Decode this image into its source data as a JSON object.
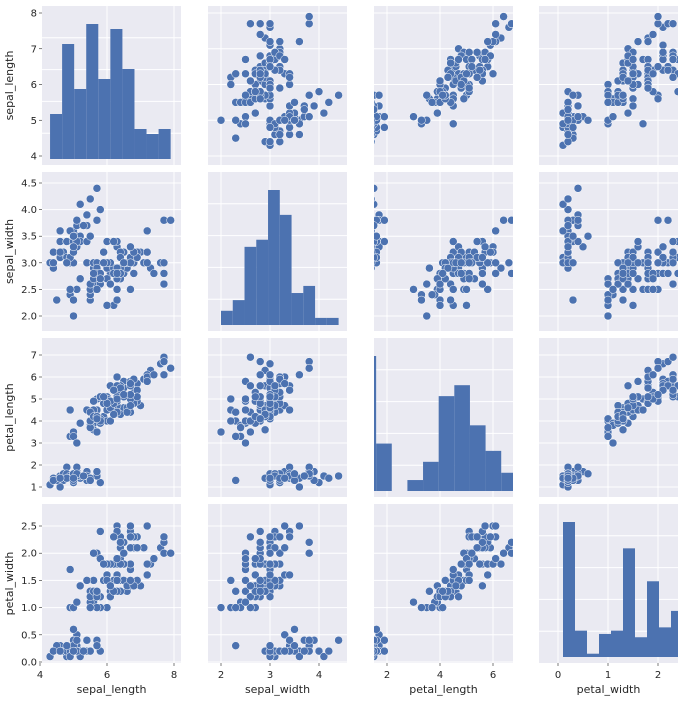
{
  "chart_data": {
    "type": "scatter",
    "variables": [
      "sepal_length",
      "sepal_width",
      "petal_length",
      "petal_width"
    ],
    "axis_labels": {
      "x": [
        "sepal_length",
        "sepal_width",
        "petal_length",
        "petal_width"
      ],
      "y": [
        "sepal_length",
        "sepal_width",
        "petal_length",
        "petal_width"
      ]
    },
    "x_ticks": [
      [
        "4",
        "6",
        "8"
      ],
      [
        "2",
        "3",
        "4"
      ],
      [
        "2",
        "4",
        "6"
      ],
      [
        "0",
        "1",
        "2"
      ]
    ],
    "y_ticks": [
      [
        "4",
        "5",
        "6",
        "7",
        "8"
      ],
      [
        "2.0",
        "2.5",
        "3.0",
        "3.5",
        "4.0",
        "4.5"
      ],
      [
        "1",
        "2",
        "3",
        "4",
        "5",
        "6",
        "7"
      ],
      [
        "0.0",
        "0.5",
        "1.0",
        "1.5",
        "2.0",
        "2.5"
      ]
    ],
    "colors": {
      "point": "#4c72b0",
      "bar": "#4c72b0",
      "panel_bg": "#eaeaf2",
      "grid": "#ffffff"
    },
    "grid": true,
    "diagonal": "hist",
    "hist": [
      {
        "variable": "sepal_length",
        "edges": [
          4.3,
          4.66,
          5.02,
          5.38,
          5.74,
          6.1,
          6.46,
          6.82,
          7.18,
          7.54,
          7.9
        ],
        "counts": [
          9,
          23,
          14,
          27,
          16,
          26,
          18,
          6,
          5,
          6
        ]
      },
      {
        "variable": "sepal_width",
        "edges": [
          2.0,
          2.24,
          2.48,
          2.72,
          2.96,
          3.2,
          3.44,
          3.68,
          3.92,
          4.16,
          4.4
        ],
        "counts": [
          4,
          7,
          22,
          24,
          38,
          31,
          9,
          11,
          2,
          2
        ]
      },
      {
        "variable": "petal_length",
        "edges": [
          1.0,
          1.59,
          2.18,
          2.77,
          3.36,
          3.95,
          4.54,
          5.13,
          5.72,
          6.31,
          6.9
        ],
        "counts": [
          37,
          13,
          0,
          3,
          8,
          26,
          29,
          18,
          11,
          5
        ]
      },
      {
        "variable": "petal_width",
        "edges": [
          0.1,
          0.34,
          0.58,
          0.82,
          1.06,
          1.3,
          1.54,
          1.78,
          2.02,
          2.26,
          2.5
        ],
        "counts": [
          41,
          8,
          1,
          7,
          8,
          33,
          6,
          23,
          9,
          14
        ]
      }
    ],
    "points": [
      [
        5.1,
        3.5,
        1.4,
        0.2
      ],
      [
        4.9,
        3.0,
        1.4,
        0.2
      ],
      [
        4.7,
        3.2,
        1.3,
        0.2
      ],
      [
        4.6,
        3.1,
        1.5,
        0.2
      ],
      [
        5.0,
        3.6,
        1.4,
        0.2
      ],
      [
        5.4,
        3.9,
        1.7,
        0.4
      ],
      [
        4.6,
        3.4,
        1.4,
        0.3
      ],
      [
        5.0,
        3.4,
        1.5,
        0.2
      ],
      [
        4.4,
        2.9,
        1.4,
        0.2
      ],
      [
        4.9,
        3.1,
        1.5,
        0.1
      ],
      [
        5.4,
        3.7,
        1.5,
        0.2
      ],
      [
        4.8,
        3.4,
        1.6,
        0.2
      ],
      [
        4.8,
        3.0,
        1.4,
        0.1
      ],
      [
        4.3,
        3.0,
        1.1,
        0.1
      ],
      [
        5.8,
        4.0,
        1.2,
        0.2
      ],
      [
        5.7,
        4.4,
        1.5,
        0.4
      ],
      [
        5.4,
        3.9,
        1.3,
        0.4
      ],
      [
        5.1,
        3.5,
        1.4,
        0.3
      ],
      [
        5.7,
        3.8,
        1.7,
        0.3
      ],
      [
        5.1,
        3.8,
        1.5,
        0.3
      ],
      [
        5.4,
        3.4,
        1.7,
        0.2
      ],
      [
        5.1,
        3.7,
        1.5,
        0.4
      ],
      [
        4.6,
        3.6,
        1.0,
        0.2
      ],
      [
        5.1,
        3.3,
        1.7,
        0.5
      ],
      [
        4.8,
        3.4,
        1.9,
        0.2
      ],
      [
        5.0,
        3.0,
        1.6,
        0.2
      ],
      [
        5.0,
        3.4,
        1.6,
        0.4
      ],
      [
        5.2,
        3.5,
        1.5,
        0.2
      ],
      [
        5.2,
        3.4,
        1.4,
        0.2
      ],
      [
        4.7,
        3.2,
        1.6,
        0.2
      ],
      [
        4.8,
        3.1,
        1.6,
        0.2
      ],
      [
        5.4,
        3.4,
        1.5,
        0.4
      ],
      [
        5.2,
        4.1,
        1.5,
        0.1
      ],
      [
        5.5,
        4.2,
        1.4,
        0.2
      ],
      [
        4.9,
        3.1,
        1.5,
        0.2
      ],
      [
        5.0,
        3.2,
        1.2,
        0.2
      ],
      [
        5.5,
        3.5,
        1.3,
        0.2
      ],
      [
        4.9,
        3.6,
        1.4,
        0.1
      ],
      [
        4.4,
        3.0,
        1.3,
        0.2
      ],
      [
        5.1,
        3.4,
        1.5,
        0.2
      ],
      [
        5.0,
        3.5,
        1.3,
        0.3
      ],
      [
        4.5,
        2.3,
        1.3,
        0.3
      ],
      [
        4.4,
        3.2,
        1.3,
        0.2
      ],
      [
        5.0,
        3.5,
        1.6,
        0.6
      ],
      [
        5.1,
        3.8,
        1.9,
        0.4
      ],
      [
        4.8,
        3.0,
        1.4,
        0.3
      ],
      [
        5.1,
        3.8,
        1.6,
        0.2
      ],
      [
        4.6,
        3.2,
        1.4,
        0.2
      ],
      [
        5.3,
        3.7,
        1.5,
        0.2
      ],
      [
        5.0,
        3.3,
        1.4,
        0.2
      ],
      [
        7.0,
        3.2,
        4.7,
        1.4
      ],
      [
        6.4,
        3.2,
        4.5,
        1.5
      ],
      [
        6.9,
        3.1,
        4.9,
        1.5
      ],
      [
        5.5,
        2.3,
        4.0,
        1.3
      ],
      [
        6.5,
        2.8,
        4.6,
        1.5
      ],
      [
        5.7,
        2.8,
        4.5,
        1.3
      ],
      [
        6.3,
        3.3,
        4.7,
        1.6
      ],
      [
        4.9,
        2.4,
        3.3,
        1.0
      ],
      [
        6.6,
        2.9,
        4.6,
        1.3
      ],
      [
        5.2,
        2.7,
        3.9,
        1.4
      ],
      [
        5.0,
        2.0,
        3.5,
        1.0
      ],
      [
        5.9,
        3.0,
        4.2,
        1.5
      ],
      [
        6.0,
        2.2,
        4.0,
        1.0
      ],
      [
        6.1,
        2.9,
        4.7,
        1.4
      ],
      [
        5.6,
        2.9,
        3.6,
        1.3
      ],
      [
        6.7,
        3.1,
        4.4,
        1.4
      ],
      [
        5.6,
        3.0,
        4.5,
        1.5
      ],
      [
        5.8,
        2.7,
        4.1,
        1.0
      ],
      [
        6.2,
        2.2,
        4.5,
        1.5
      ],
      [
        5.6,
        2.5,
        3.9,
        1.1
      ],
      [
        5.9,
        3.2,
        4.8,
        1.8
      ],
      [
        6.1,
        2.8,
        4.0,
        1.3
      ],
      [
        6.3,
        2.5,
        4.9,
        1.5
      ],
      [
        6.1,
        2.8,
        4.7,
        1.2
      ],
      [
        6.4,
        2.9,
        4.3,
        1.3
      ],
      [
        6.6,
        3.0,
        4.4,
        1.4
      ],
      [
        6.8,
        2.8,
        4.8,
        1.4
      ],
      [
        6.7,
        3.0,
        5.0,
        1.7
      ],
      [
        6.0,
        2.9,
        4.5,
        1.5
      ],
      [
        5.7,
        2.6,
        3.5,
        1.0
      ],
      [
        5.5,
        2.4,
        3.8,
        1.1
      ],
      [
        5.5,
        2.4,
        3.7,
        1.0
      ],
      [
        5.8,
        2.7,
        3.9,
        1.2
      ],
      [
        6.0,
        2.7,
        5.1,
        1.6
      ],
      [
        5.4,
        3.0,
        4.5,
        1.5
      ],
      [
        6.0,
        3.4,
        4.5,
        1.6
      ],
      [
        6.7,
        3.1,
        4.7,
        1.5
      ],
      [
        6.3,
        2.3,
        4.4,
        1.3
      ],
      [
        5.6,
        3.0,
        4.1,
        1.3
      ],
      [
        5.5,
        2.5,
        4.0,
        1.3
      ],
      [
        5.5,
        2.6,
        4.4,
        1.2
      ],
      [
        6.1,
        3.0,
        4.6,
        1.4
      ],
      [
        5.8,
        2.6,
        4.0,
        1.2
      ],
      [
        5.0,
        2.3,
        3.3,
        1.0
      ],
      [
        5.6,
        2.7,
        4.2,
        1.3
      ],
      [
        5.7,
        3.0,
        4.2,
        1.2
      ],
      [
        5.7,
        2.9,
        4.2,
        1.3
      ],
      [
        6.2,
        2.9,
        4.3,
        1.3
      ],
      [
        5.1,
        2.5,
        3.0,
        1.1
      ],
      [
        5.7,
        2.8,
        4.1,
        1.3
      ],
      [
        6.3,
        3.3,
        6.0,
        2.5
      ],
      [
        5.8,
        2.7,
        5.1,
        1.9
      ],
      [
        7.1,
        3.0,
        5.9,
        2.1
      ],
      [
        6.3,
        2.9,
        5.6,
        1.8
      ],
      [
        6.5,
        3.0,
        5.8,
        2.2
      ],
      [
        7.6,
        3.0,
        6.6,
        2.1
      ],
      [
        4.9,
        2.5,
        4.5,
        1.7
      ],
      [
        7.3,
        2.9,
        6.3,
        1.8
      ],
      [
        6.7,
        2.5,
        5.8,
        1.8
      ],
      [
        7.2,
        3.6,
        6.1,
        2.5
      ],
      [
        6.5,
        3.2,
        5.1,
        2.0
      ],
      [
        6.4,
        2.7,
        5.3,
        1.9
      ],
      [
        6.8,
        3.0,
        5.5,
        2.1
      ],
      [
        5.7,
        2.5,
        5.0,
        2.0
      ],
      [
        5.8,
        2.8,
        5.1,
        2.4
      ],
      [
        6.4,
        3.2,
        5.3,
        2.3
      ],
      [
        6.5,
        3.0,
        5.5,
        1.8
      ],
      [
        7.7,
        3.8,
        6.7,
        2.2
      ],
      [
        7.7,
        2.6,
        6.9,
        2.3
      ],
      [
        6.0,
        2.2,
        5.0,
        1.5
      ],
      [
        6.9,
        3.2,
        5.7,
        2.3
      ],
      [
        5.6,
        2.8,
        4.9,
        2.0
      ],
      [
        7.7,
        2.8,
        6.7,
        2.0
      ],
      [
        6.3,
        2.7,
        4.9,
        1.8
      ],
      [
        6.7,
        3.3,
        5.7,
        2.1
      ],
      [
        7.2,
        3.2,
        6.0,
        1.8
      ],
      [
        6.2,
        2.8,
        4.8,
        1.8
      ],
      [
        6.1,
        3.0,
        4.9,
        1.8
      ],
      [
        6.4,
        2.8,
        5.6,
        2.1
      ],
      [
        7.2,
        3.0,
        5.8,
        1.6
      ],
      [
        7.4,
        2.8,
        6.1,
        1.9
      ],
      [
        7.9,
        3.8,
        6.4,
        2.0
      ],
      [
        6.4,
        2.8,
        5.6,
        2.2
      ],
      [
        6.3,
        2.8,
        5.1,
        1.5
      ],
      [
        6.1,
        2.6,
        5.6,
        1.4
      ],
      [
        7.7,
        3.0,
        6.1,
        2.3
      ],
      [
        6.3,
        3.4,
        5.6,
        2.4
      ],
      [
        6.4,
        3.1,
        5.5,
        1.8
      ],
      [
        6.0,
        3.0,
        4.8,
        1.8
      ],
      [
        6.9,
        3.1,
        5.4,
        2.1
      ],
      [
        6.7,
        3.1,
        5.6,
        2.4
      ],
      [
        6.9,
        3.1,
        5.1,
        2.3
      ],
      [
        5.8,
        2.7,
        5.1,
        1.9
      ],
      [
        6.8,
        3.2,
        5.9,
        2.3
      ],
      [
        6.7,
        3.3,
        5.7,
        2.5
      ],
      [
        6.7,
        3.0,
        5.2,
        2.3
      ],
      [
        6.3,
        2.5,
        5.0,
        1.9
      ],
      [
        6.5,
        3.0,
        5.2,
        2.0
      ],
      [
        6.2,
        3.4,
        5.4,
        2.3
      ],
      [
        5.9,
        3.0,
        5.1,
        1.8
      ]
    ]
  }
}
